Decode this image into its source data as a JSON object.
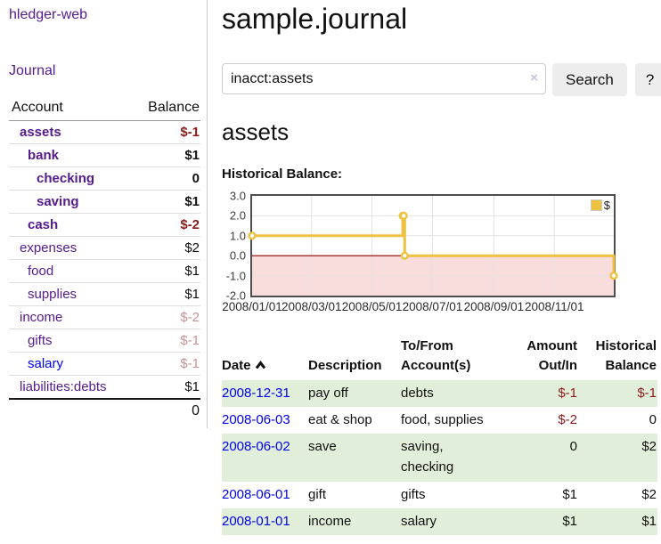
{
  "app": {
    "title": "hledger-web"
  },
  "colors": {
    "link_purple": "#551a8b",
    "link_blue": "#0000ee",
    "negative_strong": "#8b1a1a",
    "negative_light": "#c49494",
    "stripe_green": "#e1efda",
    "chart_series_gold": "#EDC240",
    "chart_negative_fill": "#f9dcdc",
    "chart_zero_line": "#8b0000"
  },
  "sidebar": {
    "nav_journal": "Journal",
    "accounts": {
      "header_account": "Account",
      "header_balance": "Balance",
      "rows": [
        {
          "name": "assets",
          "indent": 1,
          "balance": "$-1",
          "current": true,
          "balance_style": "neg-strong",
          "link_color": "purple"
        },
        {
          "name": "bank",
          "indent": 2,
          "balance": "$1",
          "current": true,
          "balance_style": "pos",
          "link_color": "purple"
        },
        {
          "name": "checking",
          "indent": 3,
          "balance": "0",
          "current": true,
          "balance_style": "pos",
          "link_color": "purple"
        },
        {
          "name": "saving",
          "indent": 3,
          "balance": "$1",
          "current": true,
          "balance_style": "pos",
          "link_color": "purple"
        },
        {
          "name": "cash",
          "indent": 2,
          "balance": "$-2",
          "current": true,
          "balance_style": "neg-strong",
          "link_color": "purple"
        },
        {
          "name": "expenses",
          "indent": 1,
          "balance": "$2",
          "current": false,
          "balance_style": "pos",
          "link_color": "purple"
        },
        {
          "name": "food",
          "indent": 2,
          "balance": "$1",
          "current": false,
          "balance_style": "pos",
          "link_color": "purple"
        },
        {
          "name": "supplies",
          "indent": 2,
          "balance": "$1",
          "current": false,
          "balance_style": "pos",
          "link_color": "purple"
        },
        {
          "name": "income",
          "indent": 1,
          "balance": "$-2",
          "current": false,
          "balance_style": "neg-light",
          "link_color": "purple"
        },
        {
          "name": "gifts",
          "indent": 2,
          "balance": "$-1",
          "current": false,
          "balance_style": "neg-light",
          "link_color": "purple"
        },
        {
          "name": "salary",
          "indent": 2,
          "balance": "$-1",
          "current": false,
          "balance_style": "neg-light",
          "link_color": "blue"
        },
        {
          "name": "liabilities:debts",
          "indent": 1,
          "balance": "$1",
          "current": false,
          "balance_style": "pos",
          "link_color": "purple"
        }
      ],
      "total": "0"
    }
  },
  "main": {
    "title": "sample.journal",
    "search": {
      "value": "inacct:assets",
      "clear_icon": "×",
      "button_label": "Search",
      "help_label": "?"
    },
    "account_heading": "assets"
  },
  "chart_data": {
    "type": "line",
    "step": true,
    "title": "Historical Balance:",
    "series": [
      {
        "name": "$",
        "color": "#EDC240",
        "points": [
          [
            "2008-01-01",
            1
          ],
          [
            "2008-06-01",
            2
          ],
          [
            "2008-06-02",
            2
          ],
          [
            "2008-06-03",
            0
          ],
          [
            "2008-12-31",
            -1
          ]
        ]
      }
    ],
    "xlim": [
      "2008-01-01",
      "2008-12-31"
    ],
    "ylim": [
      -2,
      3
    ],
    "yticks": [
      3,
      2,
      1,
      0,
      -1,
      -2
    ],
    "ytick_labels": [
      "3.0",
      "2.0",
      "1.0",
      "0.0",
      "-1.0",
      "-2.0"
    ],
    "xticks": [
      "2008-01-01",
      "2008-03-01",
      "2008-05-01",
      "2008-07-01",
      "2008-09-01",
      "2008-11-01"
    ],
    "xtick_labels": [
      "2008/01/01",
      "2008/03/01",
      "2008/05/01",
      "2008/07/01",
      "2008/09/01",
      "2008/11/01"
    ],
    "grid": true,
    "legend": {
      "label": "$",
      "position": "top-right"
    },
    "negative_region_color": "#f9dcdc",
    "zero_line_color": "#8b0000"
  },
  "register": {
    "headers": {
      "date": "Date",
      "description": "Description",
      "accounts": "To/From\nAccount(s)",
      "amount": "Amount\nOut/In",
      "balance": "Historical\nBalance"
    },
    "rows": [
      {
        "date": "2008-12-31",
        "description": "pay off",
        "accounts": "debts",
        "amount": "$-1",
        "amount_neg": true,
        "balance": "$-1",
        "balance_neg": true
      },
      {
        "date": "2008-06-03",
        "description": "eat & shop",
        "accounts": "food, supplies",
        "amount": "$-2",
        "amount_neg": true,
        "balance": "0",
        "balance_neg": false
      },
      {
        "date": "2008-06-02",
        "description": "save",
        "accounts": "saving,\nchecking",
        "amount": "0",
        "amount_neg": false,
        "balance": "$2",
        "balance_neg": false
      },
      {
        "date": "2008-06-01",
        "description": "gift",
        "accounts": "gifts",
        "amount": "$1",
        "amount_neg": false,
        "balance": "$2",
        "balance_neg": false
      },
      {
        "date": "2008-01-01",
        "description": "income",
        "accounts": "salary",
        "amount": "$1",
        "amount_neg": false,
        "balance": "$1",
        "balance_neg": false
      }
    ]
  }
}
